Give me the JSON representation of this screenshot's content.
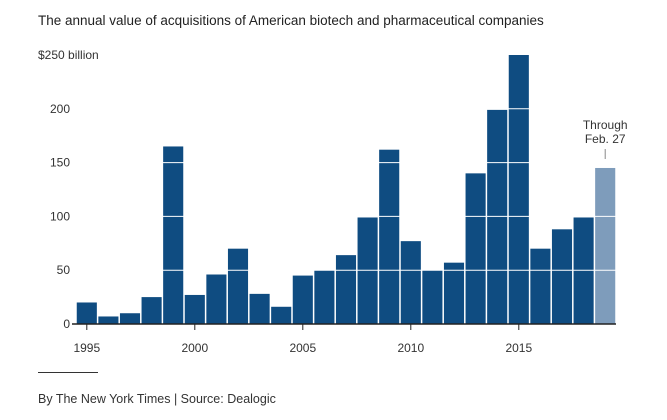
{
  "header": {
    "title": "The annual value of acquisitions of American biotech and pharmaceutical companies"
  },
  "chart_data": {
    "type": "bar",
    "title": "The annual value of acquisitions of American biotech and pharmaceutical companies",
    "unit_label": "$250 billion",
    "categories": [
      "1995",
      "1996",
      "1997",
      "1998",
      "1999",
      "2000",
      "2001",
      "2002",
      "2003",
      "2004",
      "2005",
      "2006",
      "2007",
      "2008",
      "2009",
      "2010",
      "2011",
      "2012",
      "2013",
      "2014",
      "2015",
      "2016",
      "2017",
      "2018",
      "2019"
    ],
    "values": [
      20,
      7,
      10,
      25,
      165,
      27,
      46,
      70,
      28,
      16,
      45,
      50,
      64,
      99,
      162,
      77,
      50,
      57,
      140,
      199,
      250,
      70,
      88,
      99,
      145
    ],
    "partial_year": "2019",
    "partial_label_lines": [
      "Through",
      "Feb. 27"
    ],
    "y_ticks": [
      {
        "value": 0,
        "label": "0"
      },
      {
        "value": 50,
        "label": "50"
      },
      {
        "value": 100,
        "label": "100"
      },
      {
        "value": 150,
        "label": "150"
      },
      {
        "value": 200,
        "label": "200"
      },
      {
        "value": 250,
        "label": "$250 billion"
      }
    ],
    "x_ticks": [
      "1995",
      "2000",
      "2005",
      "2010",
      "2015"
    ],
    "ylim": [
      0,
      250
    ],
    "grid": "white gridlines over bars",
    "legend": "none",
    "colors": {
      "bar": "#0f4c81",
      "bar_partial": "#7e9cbb",
      "gridline": "#ffffff",
      "axis": "#222222",
      "text": "#333333"
    }
  },
  "footer": {
    "credit": "By The New York Times | Source: Dealogic"
  }
}
